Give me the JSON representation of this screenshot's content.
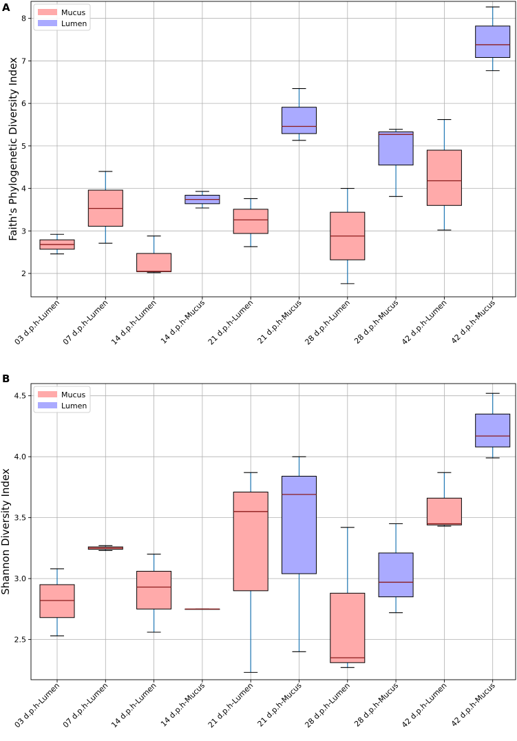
{
  "colors": {
    "mucus": "#ffaaaa",
    "lumen": "#aaaaff",
    "whisker": "#1f77b4",
    "median": "#8b1a1a"
  },
  "chart_data": [
    {
      "panel": "A",
      "type": "box",
      "ylabel": "Faith's Phylogenetic Diversity Index",
      "ylim": [
        1.45,
        8.4
      ],
      "yticks": [
        2,
        3,
        4,
        5,
        6,
        7,
        8
      ],
      "ytick_labels": [
        "2",
        "3",
        "4",
        "5",
        "6",
        "7",
        "8"
      ],
      "legend": [
        {
          "label": "Mucus",
          "color": "#ffaaaa"
        },
        {
          "label": "Lumen",
          "color": "#aaaaff"
        }
      ],
      "categories": [
        "03 d.p.h-Lumen",
        "07 d.p.h-Lumen",
        "14 d.p.h-Lumen",
        "14 d.p.h-Mucus",
        "21 d.p.h-Lumen",
        "21 d.p.h-Mucus",
        "28 d.p.h-Lumen",
        "28 d.p.h-Mucus",
        "42 d.p.h-Lumen",
        "42 d.p.h-Mucus"
      ],
      "boxes": [
        {
          "min": 2.46,
          "q1": 2.57,
          "median": 2.68,
          "q3": 2.79,
          "max": 2.92,
          "group": "Mucus"
        },
        {
          "min": 2.71,
          "q1": 3.11,
          "median": 3.53,
          "q3": 3.96,
          "max": 4.4,
          "group": "Mucus"
        },
        {
          "min": 2.02,
          "q1": 2.04,
          "median": 2.05,
          "q3": 2.47,
          "max": 2.88,
          "group": "Mucus"
        },
        {
          "min": 3.54,
          "q1": 3.64,
          "median": 3.74,
          "q3": 3.84,
          "max": 3.93,
          "group": "Lumen"
        },
        {
          "min": 2.63,
          "q1": 2.94,
          "median": 3.26,
          "q3": 3.51,
          "max": 3.76,
          "group": "Mucus"
        },
        {
          "min": 5.13,
          "q1": 5.29,
          "median": 5.46,
          "q3": 5.91,
          "max": 6.35,
          "group": "Lumen"
        },
        {
          "min": 1.76,
          "q1": 2.32,
          "median": 2.88,
          "q3": 3.44,
          "max": 4.0,
          "group": "Mucus"
        },
        {
          "min": 3.81,
          "q1": 4.55,
          "median": 5.27,
          "q3": 5.33,
          "max": 5.39,
          "group": "Lumen"
        },
        {
          "min": 3.02,
          "q1": 3.6,
          "median": 4.18,
          "q3": 4.9,
          "max": 5.62,
          "group": "Mucus"
        },
        {
          "min": 6.77,
          "q1": 7.08,
          "median": 7.38,
          "q3": 7.82,
          "max": 8.27,
          "group": "Lumen"
        }
      ]
    },
    {
      "panel": "B",
      "type": "box",
      "ylabel": "Shannon Diversity Index",
      "ylim": [
        2.17,
        4.6
      ],
      "yticks": [
        2.5,
        3.0,
        3.5,
        4.0,
        4.5
      ],
      "ytick_labels": [
        "2.5",
        "3.0",
        "3.5",
        "4.0",
        "4.5"
      ],
      "legend": [
        {
          "label": "Mucus",
          "color": "#ffaaaa"
        },
        {
          "label": "Lumen",
          "color": "#aaaaff"
        }
      ],
      "categories": [
        "03 d.p.h-Lumen",
        "07 d.p.h-Lumen",
        "14 d.p.h-Lumen",
        "14 d.p.h-Mucus",
        "21 d.p.h-Lumen",
        "21 d.p.h-Mucus",
        "28 d.p.h-Lumen",
        "28 d.p.h-Mucus",
        "42 d.p.h-Lumen",
        "42 d.p.h-Mucus"
      ],
      "boxes": [
        {
          "min": 2.53,
          "q1": 2.68,
          "median": 2.82,
          "q3": 2.95,
          "max": 3.08,
          "group": "Mucus"
        },
        {
          "min": 3.23,
          "q1": 3.24,
          "median": 3.25,
          "q3": 3.26,
          "max": 3.27,
          "group": "Mucus"
        },
        {
          "min": 2.56,
          "q1": 2.75,
          "median": 2.93,
          "q3": 3.06,
          "max": 3.2,
          "group": "Mucus"
        },
        {
          "min": 2.75,
          "q1": 2.75,
          "median": 2.75,
          "q3": 2.75,
          "max": 2.75,
          "group": "Mucus"
        },
        {
          "min": 2.23,
          "q1": 2.9,
          "median": 3.55,
          "q3": 3.71,
          "max": 3.87,
          "group": "Mucus"
        },
        {
          "min": 2.4,
          "q1": 3.04,
          "median": 3.69,
          "q3": 3.84,
          "max": 4.0,
          "group": "Lumen"
        },
        {
          "min": 2.27,
          "q1": 2.31,
          "median": 2.35,
          "q3": 2.88,
          "max": 3.42,
          "group": "Mucus"
        },
        {
          "min": 2.72,
          "q1": 2.85,
          "median": 2.97,
          "q3": 3.21,
          "max": 3.45,
          "group": "Lumen"
        },
        {
          "min": 3.43,
          "q1": 3.44,
          "median": 3.45,
          "q3": 3.66,
          "max": 3.87,
          "group": "Mucus"
        },
        {
          "min": 3.99,
          "q1": 4.08,
          "median": 4.17,
          "q3": 4.35,
          "max": 4.52,
          "group": "Lumen"
        }
      ]
    }
  ]
}
